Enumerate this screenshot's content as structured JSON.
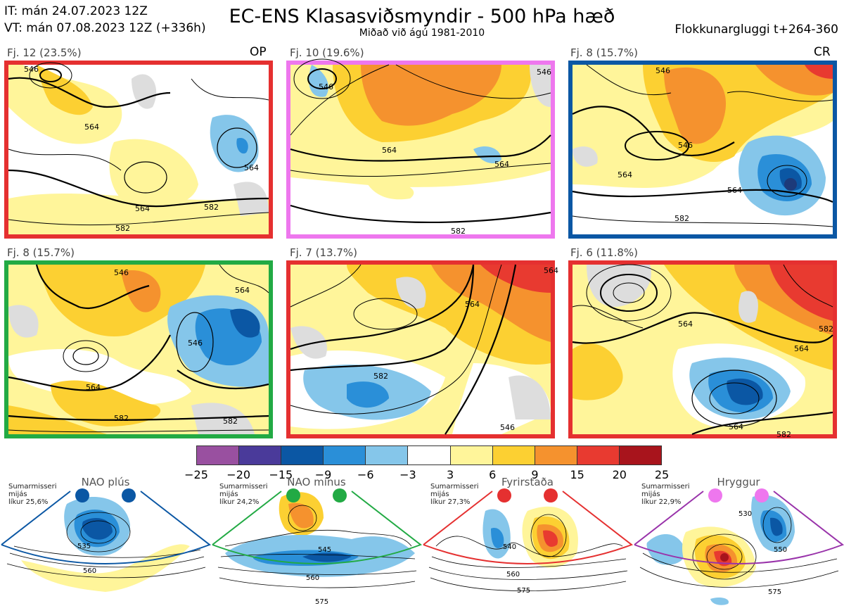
{
  "header": {
    "it_line": "IT: mán 24.07.2023 12Z",
    "vt_line": "VT: mán 07.08.2023 12Z  (+336h)",
    "title": "EC-ENS Klasasviðsmyndir - 500 hPa hæð",
    "subtitle": "Miðað við ágú 1981-2010",
    "window": "Flokkunargluggi t+264-360"
  },
  "panels": [
    {
      "label": "Fj. 12 (23.5%)",
      "tag": "OP",
      "border": "#e53030",
      "contours": [
        "546",
        "564",
        "564",
        "582",
        "564",
        "582"
      ]
    },
    {
      "label": "Fj. 10 (19.6%)",
      "tag": "",
      "border": "#ee77ee",
      "contours": [
        "546",
        "564",
        "564",
        "546",
        "582"
      ]
    },
    {
      "label": "Fj. 8 (15.7%)",
      "tag": "CR",
      "border": "#0b57a4",
      "contours": [
        "546",
        "564",
        "564",
        "582",
        "546"
      ]
    },
    {
      "label": "Fj. 8 (15.7%)",
      "tag": "",
      "border": "#22aa44",
      "contours": [
        "546",
        "564",
        "546",
        "564",
        "582",
        "582"
      ]
    },
    {
      "label": "Fj. 7 (13.7%)",
      "tag": "",
      "border": "#e53030",
      "contours": [
        "564",
        "564",
        "582",
        "546"
      ]
    },
    {
      "label": "Fj. 6 (11.8%)",
      "tag": "",
      "border": "#e53030",
      "contours": [
        "564",
        "564",
        "564",
        "582",
        "582"
      ]
    }
  ],
  "colorbar": {
    "colors": [
      "#9950a0",
      "#4a3a9a",
      "#0b57a4",
      "#2a8fd8",
      "#85c6ea",
      "#ffffff",
      "#fff59a",
      "#fcd032",
      "#f5922e",
      "#e83a30",
      "#a8141c"
    ],
    "ticks": [
      "−25",
      "−20",
      "−15",
      "−9",
      "−6",
      "−3",
      "3",
      "6",
      "9",
      "15",
      "20",
      "25"
    ]
  },
  "regimes": [
    {
      "name": "NAO plús",
      "season": "Sumarmisseri",
      "average": "mijás",
      "probability": "líkur 25,6%",
      "color": "#0b57a4",
      "contours": [
        "535",
        "560"
      ]
    },
    {
      "name": "NAO mínus",
      "season": "Sumarmisseri",
      "average": "mijás",
      "probability": "líkur 24,2%",
      "color": "#22aa44",
      "contours": [
        "545",
        "560",
        "575"
      ]
    },
    {
      "name": "Fyrirstaða",
      "season": "Sumarmisseri",
      "average": "mijás",
      "probability": "líkur 27,3%",
      "color": "#e53030",
      "contours": [
        "540",
        "560",
        "575"
      ]
    },
    {
      "name": "Hryggur",
      "season": "Sumarmisseri",
      "average": "mijás",
      "probability": "líkur 22,9%",
      "color": "#ee77ee",
      "contours": [
        "530",
        "550",
        "575"
      ]
    }
  ]
}
